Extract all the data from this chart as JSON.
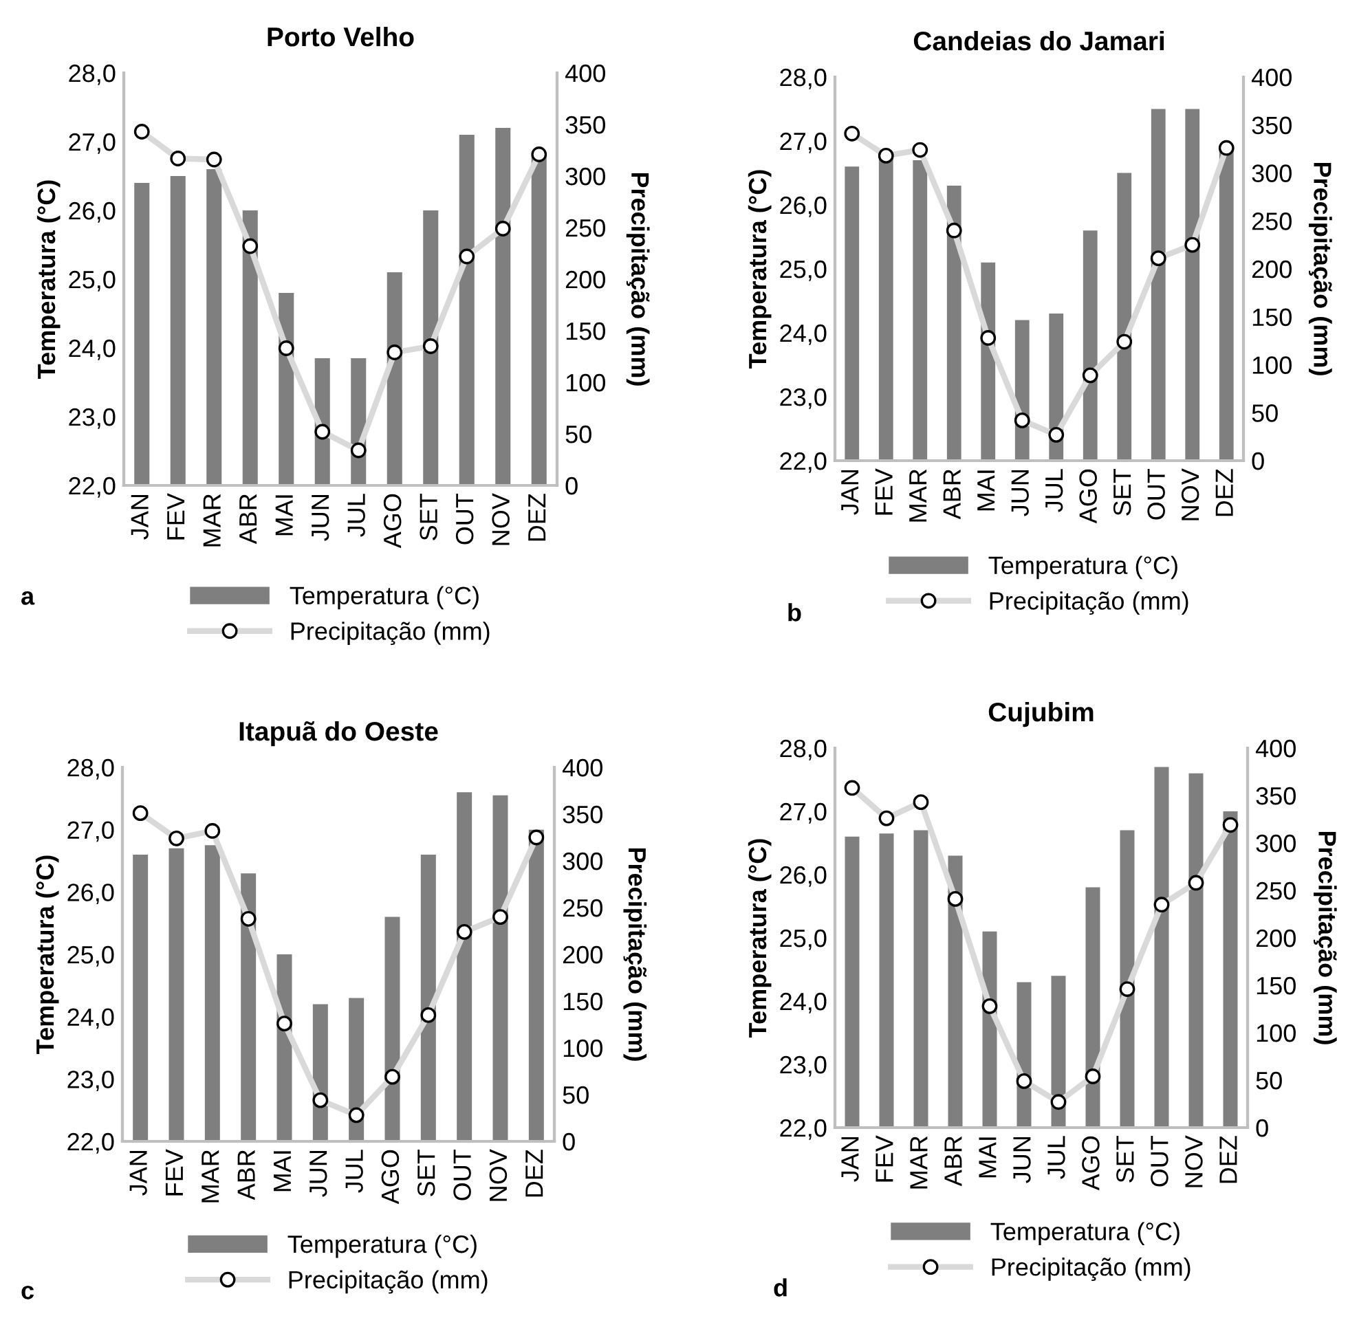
{
  "chart_data": [
    {
      "type": "bar",
      "title": "Porto Velho",
      "ylabel": "Temperatura (°C)",
      "y2label": "Precipitação (mm)",
      "annotations": [
        "a"
      ],
      "legend": "bottom",
      "marker": "circle",
      "categories": [
        "JAN",
        "FEV",
        "MAR",
        "ABR",
        "MAI",
        "JUN",
        "JUL",
        "AGO",
        "SET",
        "OUT",
        "NOV",
        "DEZ"
      ],
      "ylim": [
        22,
        28
      ],
      "yticks": [
        {
          "value": 22,
          "label": "22,0"
        },
        {
          "value": 23,
          "label": "23,0"
        },
        {
          "value": 24,
          "label": "24,0"
        },
        {
          "value": 25,
          "label": "25,0"
        },
        {
          "value": 26,
          "label": "26,0"
        },
        {
          "value": 27,
          "label": "27,0"
        },
        {
          "value": 28,
          "label": "28,0"
        }
      ],
      "y2lim": [
        0,
        400
      ],
      "y2ticks": [
        0,
        50,
        100,
        150,
        200,
        250,
        300,
        350,
        400
      ],
      "series": [
        {
          "name": "Temperatura (°C)",
          "color": "#7f7f7f",
          "values": [
            26.4,
            26.5,
            26.6,
            26.0,
            24.8,
            23.85,
            23.85,
            25.1,
            26.0,
            27.1,
            27.2,
            26.8
          ]
        },
        {
          "name": "Precipitação (mm)",
          "type": "line",
          "axis": "y2",
          "color": "#d9d9d9",
          "values": [
            343,
            317,
            316,
            232,
            133,
            52,
            34,
            129,
            135,
            222,
            249,
            321
          ]
        }
      ]
    },
    {
      "type": "bar",
      "title": "Candeias do Jamari",
      "ylabel": "Temperatura (°C)",
      "y2label": "Precipitação (mm)",
      "annotations": [
        "b"
      ],
      "legend": "bottom",
      "marker": "circle",
      "categories": [
        "JAN",
        "FEV",
        "MAR",
        "ABR",
        "MAI",
        "JUN",
        "JUL",
        "AGO",
        "SET",
        "OUT",
        "NOV",
        "DEZ"
      ],
      "ylim": [
        22,
        28
      ],
      "yticks": [
        {
          "value": 22,
          "label": "22,0"
        },
        {
          "value": 23,
          "label": "23,0"
        },
        {
          "value": 24,
          "label": "24,0"
        },
        {
          "value": 25,
          "label": "25,0"
        },
        {
          "value": 26,
          "label": "26,0"
        },
        {
          "value": 27,
          "label": "27,0"
        },
        {
          "value": 28,
          "label": "28,0"
        }
      ],
      "y2lim": [
        0,
        400
      ],
      "y2ticks": [
        0,
        50,
        100,
        150,
        200,
        250,
        300,
        350,
        400
      ],
      "series": [
        {
          "name": "Temperatura (°C)",
          "color": "#7f7f7f",
          "values": [
            26.6,
            26.8,
            26.7,
            26.3,
            25.1,
            24.2,
            24.3,
            25.6,
            26.5,
            27.5,
            27.5,
            26.9
          ]
        },
        {
          "name": "Precipitação (mm)",
          "type": "line",
          "axis": "y2",
          "color": "#d9d9d9",
          "values": [
            341,
            318,
            324,
            240,
            128,
            42,
            27,
            89,
            124,
            211,
            225,
            326
          ]
        }
      ]
    },
    {
      "type": "bar",
      "title": "Itapuã do Oeste",
      "ylabel": "Temperatura (°C)",
      "y2label": "Precipitação (mm)",
      "annotations": [
        "c"
      ],
      "legend": "bottom",
      "marker": "circle",
      "categories": [
        "JAN",
        "FEV",
        "MAR",
        "ABR",
        "MAI",
        "JUN",
        "JUL",
        "AGO",
        "SET",
        "OUT",
        "NOV",
        "DEZ"
      ],
      "ylim": [
        22,
        28
      ],
      "yticks": [
        {
          "value": 22,
          "label": "22,0"
        },
        {
          "value": 23,
          "label": "23,0"
        },
        {
          "value": 24,
          "label": "24,0"
        },
        {
          "value": 25,
          "label": "25,0"
        },
        {
          "value": 26,
          "label": "26,0"
        },
        {
          "value": 27,
          "label": "27,0"
        },
        {
          "value": 28,
          "label": "28,0"
        }
      ],
      "y2lim": [
        0,
        400
      ],
      "y2ticks": [
        0,
        50,
        100,
        150,
        200,
        250,
        300,
        350,
        400
      ],
      "series": [
        {
          "name": "Temperatura (°C)",
          "color": "#7f7f7f",
          "values": [
            26.6,
            26.7,
            26.75,
            26.3,
            25.0,
            24.2,
            24.3,
            25.6,
            26.6,
            27.6,
            27.55,
            27.0
          ]
        },
        {
          "name": "Precipitação (mm)",
          "type": "line",
          "axis": "y2",
          "color": "#d9d9d9",
          "values": [
            351,
            324,
            332,
            238,
            126,
            44,
            28,
            69,
            135,
            224,
            240,
            325
          ]
        }
      ]
    },
    {
      "type": "bar",
      "title": "Cujubim",
      "ylabel": "Temperatura (°C)",
      "y2label": "Precipitação (mm)",
      "annotations": [
        "d"
      ],
      "legend": "bottom",
      "marker": "circle",
      "categories": [
        "JAN",
        "FEV",
        "MAR",
        "ABR",
        "MAI",
        "JUN",
        "JUL",
        "AGO",
        "SET",
        "OUT",
        "NOV",
        "DEZ"
      ],
      "ylim": [
        22,
        28
      ],
      "yticks": [
        {
          "value": 22,
          "label": "22,0"
        },
        {
          "value": 23,
          "label": "23,0"
        },
        {
          "value": 24,
          "label": "24,0"
        },
        {
          "value": 25,
          "label": "25,0"
        },
        {
          "value": 26,
          "label": "26,0"
        },
        {
          "value": 27,
          "label": "27,0"
        },
        {
          "value": 28,
          "label": "28,0"
        }
      ],
      "y2lim": [
        0,
        400
      ],
      "y2ticks": [
        0,
        50,
        100,
        150,
        200,
        250,
        300,
        350,
        400
      ],
      "series": [
        {
          "name": "Temperatura (°C)",
          "color": "#7f7f7f",
          "values": [
            26.6,
            26.65,
            26.7,
            26.3,
            25.1,
            24.3,
            24.4,
            25.8,
            26.7,
            27.7,
            27.6,
            27.0
          ]
        },
        {
          "name": "Precipitação (mm)",
          "type": "line",
          "axis": "y2",
          "color": "#d9d9d9",
          "values": [
            358,
            326,
            343,
            241,
            128,
            49,
            27,
            54,
            146,
            235,
            258,
            319
          ]
        }
      ]
    }
  ]
}
